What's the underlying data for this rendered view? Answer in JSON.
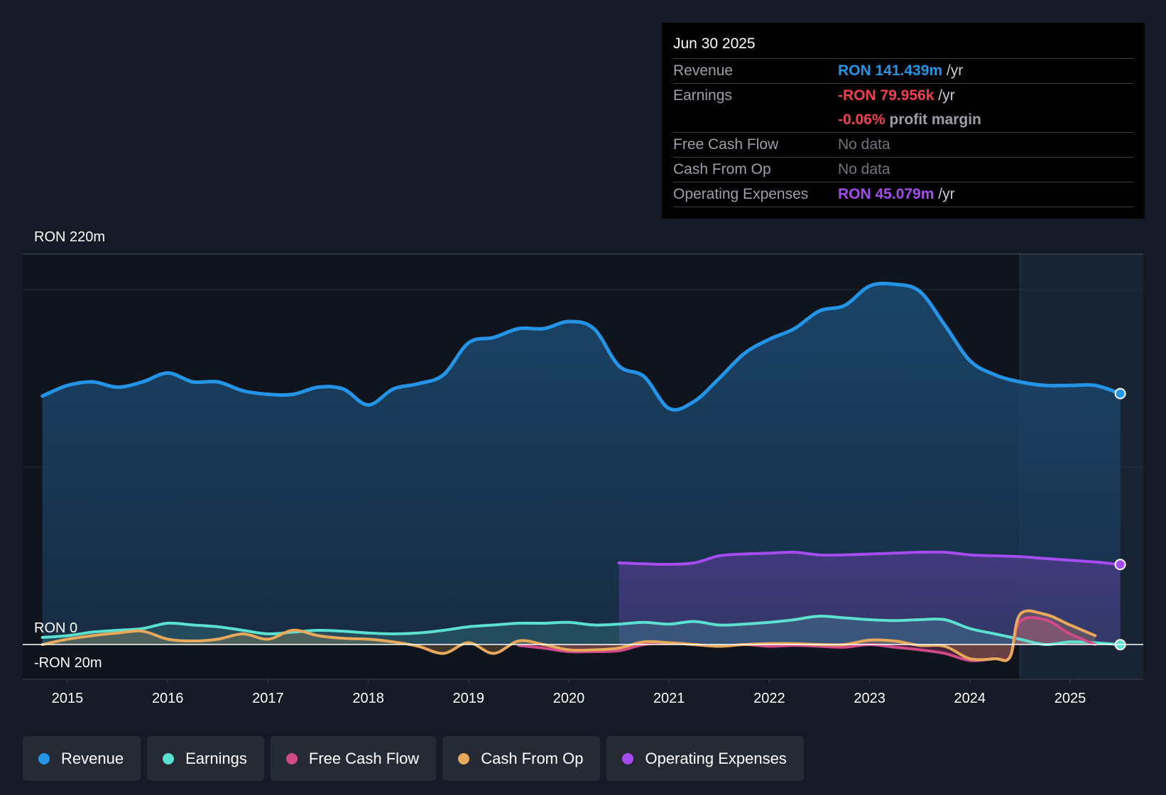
{
  "tooltip": {
    "date": "Jun 30 2025",
    "rows": {
      "revenue": {
        "label": "Revenue",
        "value": "RON 141.439m",
        "unit": " /yr"
      },
      "earnings": {
        "label": "Earnings",
        "value": "-RON 79.956k",
        "unit": " /yr"
      },
      "margin": {
        "value": "-0.06%",
        "unit": " profit margin"
      },
      "fcf": {
        "label": "Free Cash Flow",
        "value": "No data"
      },
      "cfo": {
        "label": "Cash From Op",
        "value": "No data"
      },
      "opex": {
        "label": "Operating Expenses",
        "value": "RON 45.079m",
        "unit": " /yr"
      }
    }
  },
  "legend": [
    {
      "label": "Revenue",
      "color": "#2394e6"
    },
    {
      "label": "Earnings",
      "color": "#5ce0d0"
    },
    {
      "label": "Free Cash Flow",
      "color": "#d04a8a"
    },
    {
      "label": "Cash From Op",
      "color": "#e8a95a"
    },
    {
      "label": "Operating Expenses",
      "color": "#a54cf0"
    }
  ],
  "chart_data": {
    "type": "area",
    "title": "",
    "y_top_label": "RON 220m",
    "y_zero_label": "RON 0",
    "y_bottom_label": "-RON 20m",
    "ylim": [
      -20,
      220
    ],
    "xlim": [
      2014.5,
      2025.5
    ],
    "forecast_start": 2024.5,
    "x_ticks": [
      "2015",
      "2016",
      "2017",
      "2018",
      "2019",
      "2020",
      "2021",
      "2022",
      "2023",
      "2024",
      "2025"
    ],
    "series": [
      {
        "name": "Revenue",
        "color": "#2394e6",
        "points": [
          [
            2014.75,
            140
          ],
          [
            2015,
            146
          ],
          [
            2015.25,
            148
          ],
          [
            2015.5,
            145
          ],
          [
            2015.75,
            148
          ],
          [
            2016,
            153
          ],
          [
            2016.25,
            148
          ],
          [
            2016.5,
            148
          ],
          [
            2016.75,
            143
          ],
          [
            2017,
            141
          ],
          [
            2017.25,
            141
          ],
          [
            2017.5,
            145
          ],
          [
            2017.75,
            144
          ],
          [
            2018,
            135
          ],
          [
            2018.25,
            144
          ],
          [
            2018.5,
            147
          ],
          [
            2018.75,
            152
          ],
          [
            2019,
            170
          ],
          [
            2019.25,
            173
          ],
          [
            2019.5,
            178
          ],
          [
            2019.75,
            178
          ],
          [
            2020,
            182
          ],
          [
            2020.25,
            178
          ],
          [
            2020.5,
            157
          ],
          [
            2020.75,
            151
          ],
          [
            2021,
            133
          ],
          [
            2021.25,
            137
          ],
          [
            2021.5,
            150
          ],
          [
            2021.75,
            164
          ],
          [
            2022,
            172
          ],
          [
            2022.25,
            178
          ],
          [
            2022.5,
            188
          ],
          [
            2022.75,
            191
          ],
          [
            2023,
            202
          ],
          [
            2023.25,
            203
          ],
          [
            2023.5,
            199
          ],
          [
            2023.75,
            180
          ],
          [
            2024,
            160
          ],
          [
            2024.25,
            152
          ],
          [
            2024.5,
            148
          ],
          [
            2024.75,
            146
          ],
          [
            2025,
            146
          ],
          [
            2025.25,
            146
          ],
          [
            2025.5,
            141.4
          ]
        ]
      },
      {
        "name": "Operating Expenses",
        "color": "#a54cf0",
        "points": [
          [
            2020.5,
            46
          ],
          [
            2020.75,
            45.5
          ],
          [
            2021,
            45.2
          ],
          [
            2021.25,
            46
          ],
          [
            2021.5,
            50
          ],
          [
            2021.75,
            51
          ],
          [
            2022,
            51.5
          ],
          [
            2022.25,
            52
          ],
          [
            2022.5,
            50.5
          ],
          [
            2022.75,
            50.5
          ],
          [
            2023,
            51
          ],
          [
            2023.25,
            51.5
          ],
          [
            2023.5,
            52
          ],
          [
            2023.75,
            52
          ],
          [
            2024,
            50.5
          ],
          [
            2024.25,
            50
          ],
          [
            2024.5,
            49.5
          ],
          [
            2024.75,
            48.5
          ],
          [
            2025,
            47.5
          ],
          [
            2025.25,
            46.5
          ],
          [
            2025.5,
            45.1
          ]
        ]
      },
      {
        "name": "Earnings",
        "color": "#5ce0d0",
        "points": [
          [
            2014.75,
            4
          ],
          [
            2015,
            5
          ],
          [
            2015.25,
            7
          ],
          [
            2015.5,
            8
          ],
          [
            2015.75,
            9
          ],
          [
            2016,
            12
          ],
          [
            2016.25,
            11
          ],
          [
            2016.5,
            10
          ],
          [
            2016.75,
            8
          ],
          [
            2017,
            6
          ],
          [
            2017.25,
            7
          ],
          [
            2017.5,
            8
          ],
          [
            2017.75,
            7.5
          ],
          [
            2018,
            6.5
          ],
          [
            2018.25,
            6
          ],
          [
            2018.5,
            6.5
          ],
          [
            2018.75,
            8
          ],
          [
            2019,
            10
          ],
          [
            2019.25,
            11
          ],
          [
            2019.5,
            12
          ],
          [
            2019.75,
            12
          ],
          [
            2020,
            12.5
          ],
          [
            2020.25,
            11
          ],
          [
            2020.5,
            11.5
          ],
          [
            2020.75,
            12.5
          ],
          [
            2021,
            11.5
          ],
          [
            2021.25,
            13
          ],
          [
            2021.5,
            11
          ],
          [
            2021.75,
            11.5
          ],
          [
            2022,
            12.5
          ],
          [
            2022.25,
            14
          ],
          [
            2022.5,
            16
          ],
          [
            2022.75,
            15
          ],
          [
            2023,
            14
          ],
          [
            2023.25,
            13.5
          ],
          [
            2023.5,
            14
          ],
          [
            2023.75,
            14
          ],
          [
            2024,
            9
          ],
          [
            2024.25,
            6
          ],
          [
            2024.5,
            3
          ],
          [
            2024.75,
            0
          ],
          [
            2025,
            1.5
          ],
          [
            2025.25,
            1
          ],
          [
            2025.5,
            -0.08
          ]
        ]
      },
      {
        "name": "Free Cash Flow",
        "color": "#d04a8a",
        "points": [
          [
            2019.5,
            -0.5
          ],
          [
            2019.75,
            -2
          ],
          [
            2020,
            -4
          ],
          [
            2020.25,
            -4
          ],
          [
            2020.5,
            -3.5
          ],
          [
            2020.75,
            0
          ],
          [
            2021,
            1
          ],
          [
            2021.25,
            0
          ],
          [
            2021.5,
            -1
          ],
          [
            2021.75,
            0
          ],
          [
            2022,
            -1
          ],
          [
            2022.25,
            -0.5
          ],
          [
            2022.5,
            -1
          ],
          [
            2022.75,
            -1.5
          ],
          [
            2023,
            0
          ],
          [
            2023.25,
            -1.5
          ],
          [
            2023.5,
            -3
          ],
          [
            2023.75,
            -5
          ],
          [
            2024,
            -9
          ],
          [
            2024.25,
            -8
          ],
          [
            2024.4,
            -7
          ],
          [
            2024.5,
            13
          ],
          [
            2024.75,
            14
          ],
          [
            2025,
            6
          ],
          [
            2025.25,
            0
          ]
        ]
      },
      {
        "name": "Cash From Op",
        "color": "#e8a95a",
        "points": [
          [
            2014.75,
            0
          ],
          [
            2015,
            3
          ],
          [
            2015.25,
            5
          ],
          [
            2015.5,
            6.5
          ],
          [
            2015.75,
            7.5
          ],
          [
            2016,
            3
          ],
          [
            2016.25,
            2
          ],
          [
            2016.5,
            3
          ],
          [
            2016.75,
            6
          ],
          [
            2017,
            3
          ],
          [
            2017.25,
            8
          ],
          [
            2017.5,
            5
          ],
          [
            2017.75,
            3.5
          ],
          [
            2018,
            3
          ],
          [
            2018.25,
            1.5
          ],
          [
            2018.5,
            -1
          ],
          [
            2018.75,
            -5
          ],
          [
            2019,
            1
          ],
          [
            2019.25,
            -5
          ],
          [
            2019.5,
            2
          ],
          [
            2019.75,
            0
          ],
          [
            2020,
            -3
          ],
          [
            2020.25,
            -3
          ],
          [
            2020.5,
            -2
          ],
          [
            2020.75,
            1.5
          ],
          [
            2021,
            1
          ],
          [
            2021.25,
            0
          ],
          [
            2021.5,
            -1
          ],
          [
            2021.75,
            0
          ],
          [
            2022,
            0.5
          ],
          [
            2022.25,
            0.5
          ],
          [
            2022.5,
            0
          ],
          [
            2022.75,
            0
          ],
          [
            2023,
            2.5
          ],
          [
            2023.25,
            2
          ],
          [
            2023.5,
            -0.5
          ],
          [
            2023.75,
            -1
          ],
          [
            2024,
            -8
          ],
          [
            2024.25,
            -8
          ],
          [
            2024.4,
            -7
          ],
          [
            2024.5,
            17
          ],
          [
            2024.75,
            17
          ],
          [
            2025,
            11
          ],
          [
            2025.25,
            5
          ]
        ]
      }
    ]
  }
}
